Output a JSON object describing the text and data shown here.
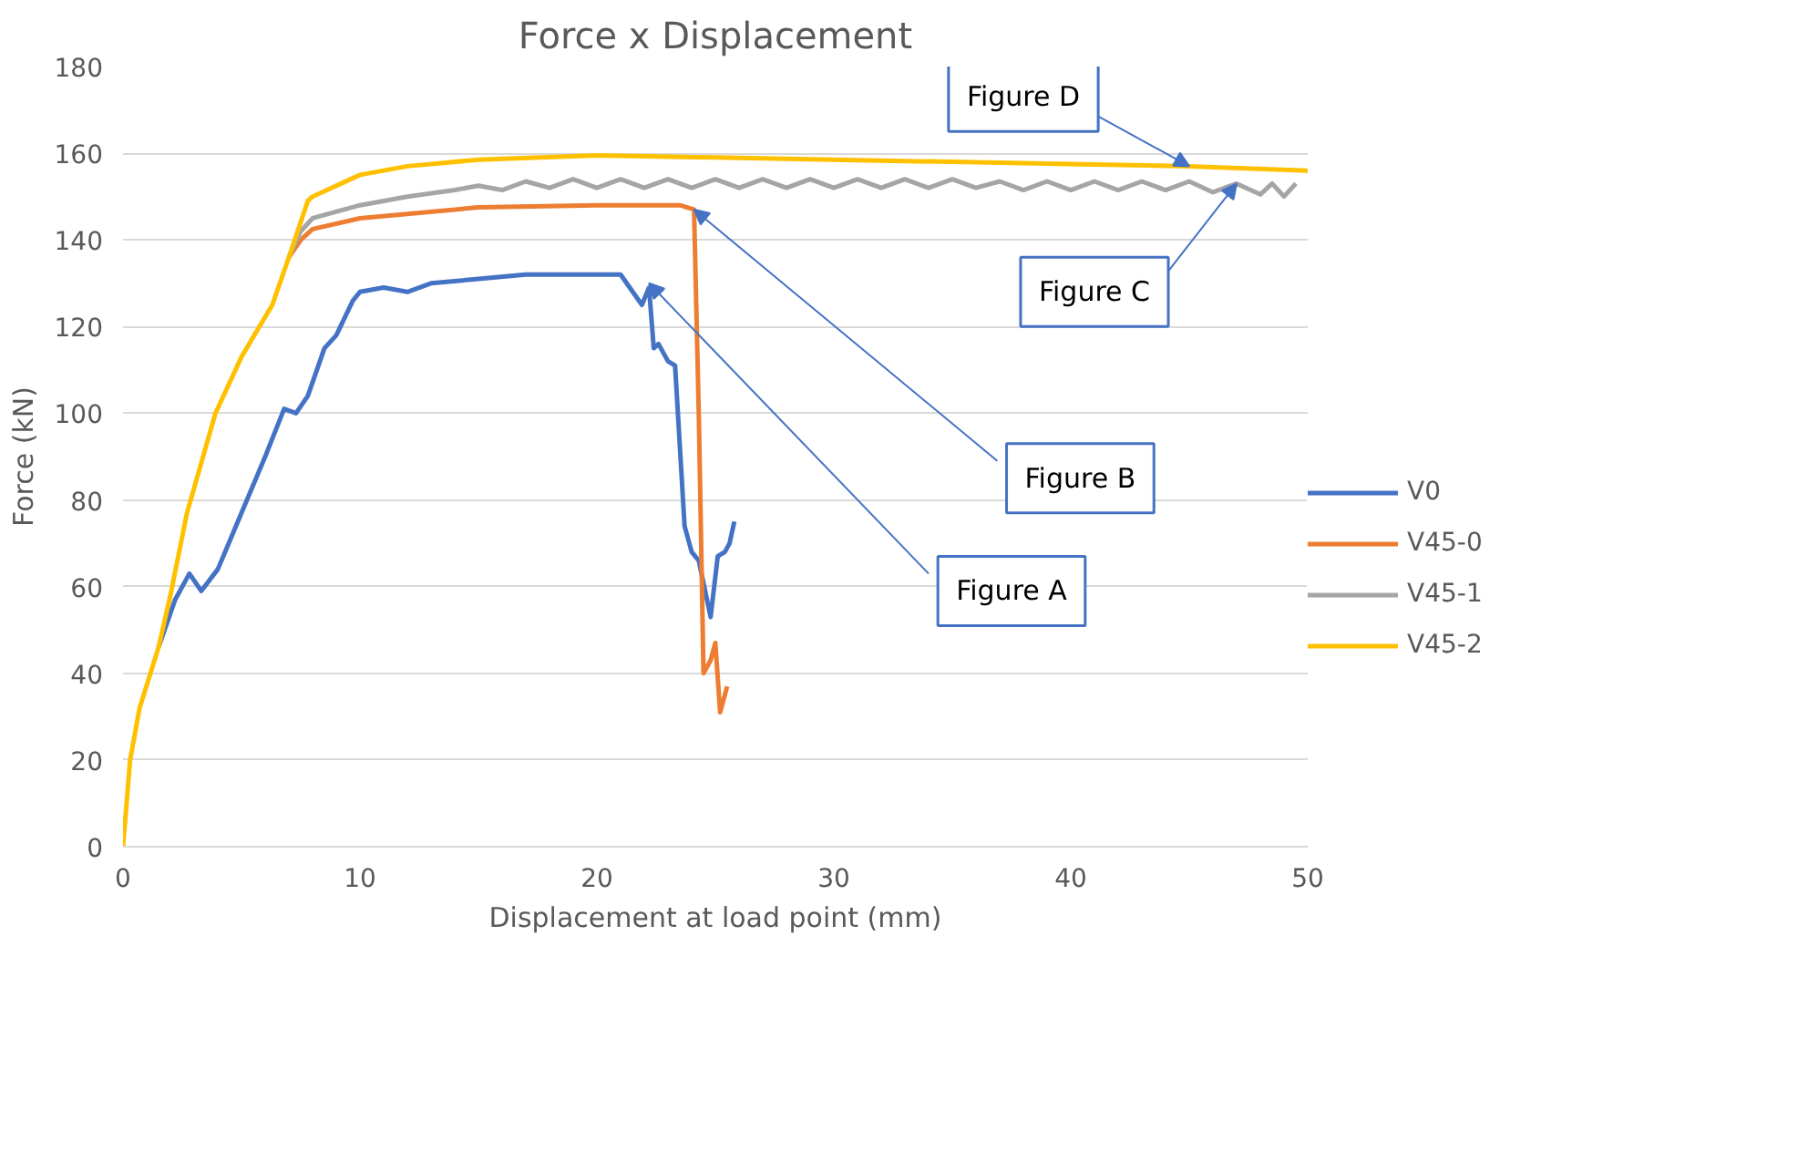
{
  "chart_data": {
    "type": "line",
    "title": "Force x Displacement",
    "xlabel": "Displacement at load point (mm)",
    "ylabel": "Force (kN)",
    "xlim": [
      0,
      50
    ],
    "xticks": [
      0,
      10,
      20,
      30,
      40,
      50
    ],
    "ylim": [
      0,
      180
    ],
    "yticks": [
      0,
      20,
      40,
      60,
      80,
      100,
      120,
      140,
      160,
      180
    ],
    "grid": "y",
    "legend": "right",
    "marker": "none",
    "line_style": "solid",
    "series": [
      {
        "name": "V0",
        "color": "#4472c4",
        "x": [
          1.5,
          2.2,
          2.8,
          3.3,
          4,
          5,
          6,
          6.8,
          7.3,
          7.8,
          8.5,
          9,
          9.7,
          10,
          11,
          12,
          13,
          15,
          17,
          19,
          21,
          21.9,
          22.2,
          22.4,
          22.6,
          23,
          23.3,
          23.7,
          24,
          24.3,
          24.8,
          25.1,
          25.4,
          25.6,
          25.8
        ],
        "values": [
          46,
          57,
          63,
          59,
          64,
          77,
          90,
          101,
          100,
          104,
          115,
          118,
          126,
          128,
          129,
          128,
          130,
          131,
          132,
          132,
          132,
          125,
          129,
          115,
          116,
          112,
          111,
          74,
          68,
          66,
          53,
          67,
          68,
          70,
          75
        ]
      },
      {
        "name": "V45-0",
        "color": "#ed7d31",
        "x": [
          7,
          7.5,
          8,
          10,
          15,
          20,
          23.5,
          24.1,
          24.3,
          24.5,
          24.8,
          25.0,
          25.2,
          25.5
        ],
        "values": [
          136,
          140,
          142.5,
          145,
          147.5,
          148,
          148,
          147,
          100,
          40,
          43,
          47,
          31,
          37
        ]
      },
      {
        "name": "V45-1",
        "color": "#a5a5a5",
        "x": [
          7,
          7.5,
          8,
          10,
          12,
          14,
          15,
          16,
          17,
          18,
          19,
          20,
          21,
          22,
          23,
          24,
          25,
          26,
          27,
          28,
          29,
          30,
          31,
          32,
          33,
          34,
          35,
          36,
          37,
          38,
          39,
          40,
          41,
          42,
          43,
          44,
          45,
          46,
          47,
          48,
          48.5,
          49,
          49.5
        ],
        "values": [
          136,
          142,
          145,
          148,
          150,
          151.5,
          152.5,
          151.5,
          153.5,
          152,
          154,
          152,
          154,
          152,
          154,
          152,
          154,
          152,
          154,
          152,
          154,
          152,
          154,
          152,
          154,
          152,
          154,
          152,
          153.5,
          151.5,
          153.5,
          151.5,
          153.5,
          151.5,
          153.5,
          151.5,
          153.5,
          151,
          153,
          150.5,
          153,
          150,
          153
        ]
      },
      {
        "name": "V45-2",
        "color": "#ffc000",
        "x": [
          0,
          0.3,
          0.7,
          1.5,
          2,
          2.7,
          3.9,
          5,
          6.3,
          7,
          7.8,
          8,
          10,
          12,
          15,
          20,
          25,
          30,
          35,
          40,
          45,
          50
        ],
        "values": [
          0,
          20,
          32,
          46,
          58,
          77,
          100,
          113,
          125,
          136,
          149,
          150,
          155,
          157,
          158.5,
          159.5,
          159,
          158.5,
          158,
          157.5,
          157,
          156
        ]
      }
    ],
    "annotations": [
      {
        "text": "Figure A",
        "x": 22.2,
        "y": 130
      },
      {
        "text": "Figure B",
        "x": 24.1,
        "y": 147
      },
      {
        "text": "Figure C",
        "x": 47,
        "y": 153
      },
      {
        "text": "Figure D",
        "x": 45,
        "y": 157
      }
    ]
  }
}
